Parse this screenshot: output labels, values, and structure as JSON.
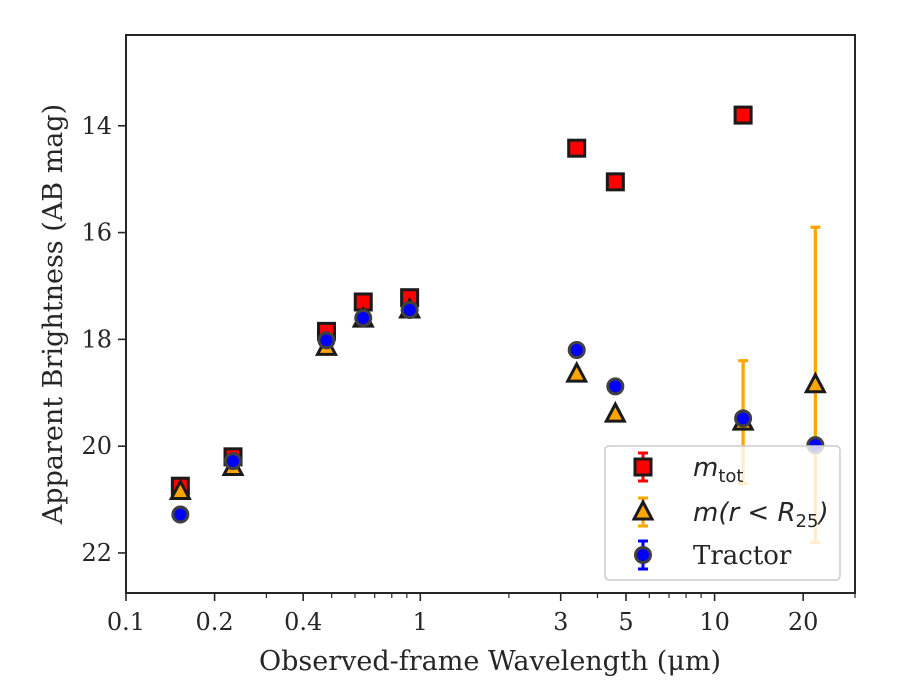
{
  "chart_data": {
    "type": "scatter",
    "title": "",
    "xlabel": "Observed-frame Wavelength (μm)",
    "ylabel": "Apparent Brightness (AB mag)",
    "xscale": "log",
    "xlim": [
      0.1,
      30
    ],
    "ylim": [
      22.75,
      12.3
    ],
    "y_inverted": true,
    "grid": false,
    "legend_position": "lower-right",
    "x_ticks": [
      {
        "value": 0.1,
        "label": "0.1"
      },
      {
        "value": 0.2,
        "label": "0.2"
      },
      {
        "value": 0.4,
        "label": "0.4"
      },
      {
        "value": 1,
        "label": "1"
      },
      {
        "value": 3,
        "label": "3"
      },
      {
        "value": 5,
        "label": "5"
      },
      {
        "value": 10,
        "label": "10"
      },
      {
        "value": 20,
        "label": "20"
      }
    ],
    "y_ticks": [
      {
        "value": 14,
        "label": "14"
      },
      {
        "value": 16,
        "label": "16"
      },
      {
        "value": 18,
        "label": "18"
      },
      {
        "value": 20,
        "label": "20"
      },
      {
        "value": 22,
        "label": "22"
      }
    ],
    "series": [
      {
        "name": "m_tot",
        "legend_main": "m",
        "legend_sub": "tot",
        "marker": "square",
        "face_color": "#ff0000",
        "edge_color": "#1a1a1a",
        "err_color": "#ff0000",
        "points": [
          {
            "x": 0.153,
            "y": 20.75,
            "yerr": 0.1
          },
          {
            "x": 0.231,
            "y": 20.2,
            "yerr": 0.05
          },
          {
            "x": 0.48,
            "y": 17.85,
            "yerr": 0
          },
          {
            "x": 0.64,
            "y": 17.3,
            "yerr": 0
          },
          {
            "x": 0.92,
            "y": 17.22,
            "yerr": 0
          },
          {
            "x": 3.4,
            "y": 14.42,
            "yerr": 0
          },
          {
            "x": 4.6,
            "y": 15.05,
            "yerr": 0
          },
          {
            "x": 12.5,
            "y": 13.8,
            "yerr": 0
          }
        ]
      },
      {
        "name": "m(r < R25)",
        "legend_main": "m(r < R",
        "legend_sub": "25",
        "legend_tail": ")",
        "marker": "triangle",
        "face_color": "#ffa500",
        "edge_color": "#1a1a1a",
        "err_color": "#ffa500",
        "points": [
          {
            "x": 0.153,
            "y": 20.85,
            "yerr": 0
          },
          {
            "x": 0.231,
            "y": 20.4,
            "yerr": 0
          },
          {
            "x": 0.48,
            "y": 18.15,
            "yerr": 0
          },
          {
            "x": 0.64,
            "y": 17.62,
            "yerr": 0
          },
          {
            "x": 0.92,
            "y": 17.45,
            "yerr": 0
          },
          {
            "x": 3.4,
            "y": 18.65,
            "yerr": 0
          },
          {
            "x": 4.6,
            "y": 19.4,
            "yerr": 0
          },
          {
            "x": 12.5,
            "y": 19.55,
            "yerr": 1.15
          },
          {
            "x": 22.0,
            "y": 18.85,
            "yerr": 2.95
          }
        ]
      },
      {
        "name": "Tractor",
        "legend_main": "Tractor",
        "marker": "circle",
        "face_color": "#0000ff",
        "edge_color": "#404040",
        "err_color": "#0000ff",
        "points": [
          {
            "x": 0.153,
            "y": 21.28,
            "yerr": 0
          },
          {
            "x": 0.231,
            "y": 20.28,
            "yerr": 0
          },
          {
            "x": 0.48,
            "y": 18.02,
            "yerr": 0
          },
          {
            "x": 0.64,
            "y": 17.6,
            "yerr": 0
          },
          {
            "x": 0.92,
            "y": 17.45,
            "yerr": 0
          },
          {
            "x": 3.4,
            "y": 18.2,
            "yerr": 0
          },
          {
            "x": 4.6,
            "y": 18.88,
            "yerr": 0
          },
          {
            "x": 12.5,
            "y": 19.48,
            "yerr": 0
          },
          {
            "x": 22.0,
            "y": 19.98,
            "yerr": 0
          }
        ]
      }
    ]
  }
}
